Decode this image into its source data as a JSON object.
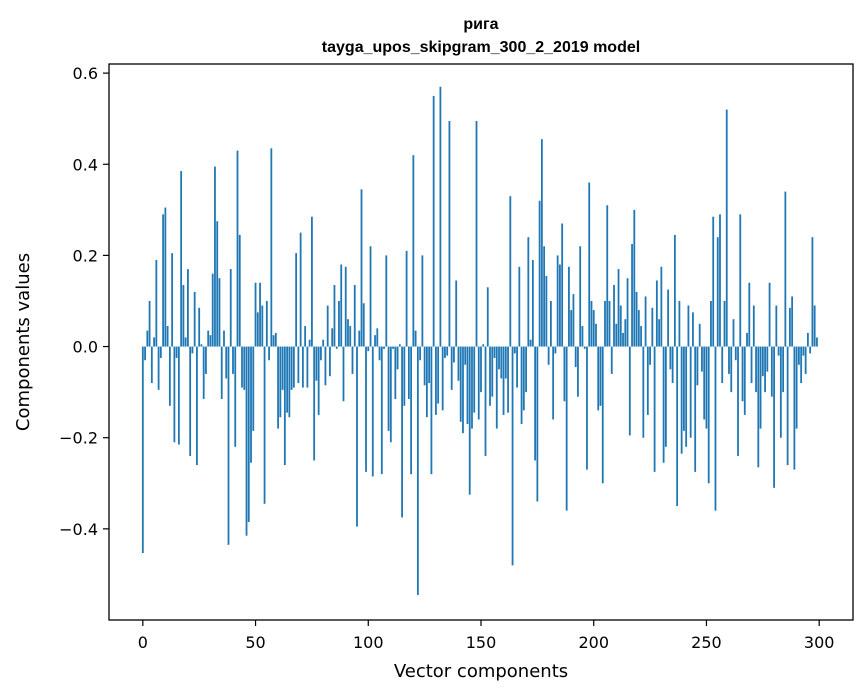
{
  "colors": {
    "bar": "#1f77b4",
    "axes": "#000000",
    "background": "#ffffff"
  },
  "chart_data": {
    "type": "bar",
    "title": "рига",
    "subtitle": "tayga_upos_skipgram_300_2_2019 model",
    "xlabel": "Vector components",
    "ylabel": "Components values",
    "xlim": [
      -15,
      315
    ],
    "ylim": [
      -0.6,
      0.62
    ],
    "xticks": [
      0,
      50,
      100,
      150,
      200,
      250,
      300
    ],
    "xtick_labels": [
      "0",
      "50",
      "100",
      "150",
      "200",
      "250",
      "300"
    ],
    "yticks": [
      -0.4,
      -0.2,
      0.0,
      0.2,
      0.4,
      0.6
    ],
    "ytick_labels": [
      "−0.4",
      "−0.2",
      "0.0",
      "0.2",
      "0.4",
      "0.6"
    ],
    "grid": false,
    "legend": "none",
    "x": [
      0,
      1,
      2,
      3,
      4,
      5,
      6,
      7,
      8,
      9,
      10,
      11,
      12,
      13,
      14,
      15,
      16,
      17,
      18,
      19,
      20,
      21,
      22,
      23,
      24,
      25,
      26,
      27,
      28,
      29,
      30,
      31,
      32,
      33,
      34,
      35,
      36,
      37,
      38,
      39,
      40,
      41,
      42,
      43,
      44,
      45,
      46,
      47,
      48,
      49,
      50,
      51,
      52,
      53,
      54,
      55,
      56,
      57,
      58,
      59,
      60,
      61,
      62,
      63,
      64,
      65,
      66,
      67,
      68,
      69,
      70,
      71,
      72,
      73,
      74,
      75,
      76,
      77,
      78,
      79,
      80,
      81,
      82,
      83,
      84,
      85,
      86,
      87,
      88,
      89,
      90,
      91,
      92,
      93,
      94,
      95,
      96,
      97,
      98,
      99,
      100,
      101,
      102,
      103,
      104,
      105,
      106,
      107,
      108,
      109,
      110,
      111,
      112,
      113,
      114,
      115,
      116,
      117,
      118,
      119,
      120,
      121,
      122,
      123,
      124,
      125,
      126,
      127,
      128,
      129,
      130,
      131,
      132,
      133,
      134,
      135,
      136,
      137,
      138,
      139,
      140,
      141,
      142,
      143,
      144,
      145,
      146,
      147,
      148,
      149,
      150,
      151,
      152,
      153,
      154,
      155,
      156,
      157,
      158,
      159,
      160,
      161,
      162,
      163,
      164,
      165,
      166,
      167,
      168,
      169,
      170,
      171,
      172,
      173,
      174,
      175,
      176,
      177,
      178,
      179,
      180,
      181,
      182,
      183,
      184,
      185,
      186,
      187,
      188,
      189,
      190,
      191,
      192,
      193,
      194,
      195,
      196,
      197,
      198,
      199,
      200,
      201,
      202,
      203,
      204,
      205,
      206,
      207,
      208,
      209,
      210,
      211,
      212,
      213,
      214,
      215,
      216,
      217,
      218,
      219,
      220,
      221,
      222,
      223,
      224,
      225,
      226,
      227,
      228,
      229,
      230,
      231,
      232,
      233,
      234,
      235,
      236,
      237,
      238,
      239,
      240,
      241,
      242,
      243,
      244,
      245,
      246,
      247,
      248,
      249,
      250,
      251,
      252,
      253,
      254,
      255,
      256,
      257,
      258,
      259,
      260,
      261,
      262,
      263,
      264,
      265,
      266,
      267,
      268,
      269,
      270,
      271,
      272,
      273,
      274,
      275,
      276,
      277,
      278,
      279,
      280,
      281,
      282,
      283,
      284,
      285,
      286,
      287,
      288,
      289,
      290,
      291,
      292,
      293,
      294,
      295,
      296,
      297,
      298,
      299
    ],
    "values": [
      -0.453,
      -0.03,
      0.035,
      0.1,
      -0.08,
      0.02,
      0.19,
      -0.095,
      -0.025,
      0.29,
      0.305,
      0.045,
      -0.13,
      0.205,
      -0.21,
      -0.025,
      -0.215,
      0.385,
      0.135,
      0.02,
      0.17,
      -0.24,
      -0.015,
      0.12,
      -0.26,
      0.085,
      0.005,
      -0.115,
      -0.06,
      0.035,
      0.025,
      0.16,
      0.395,
      0.275,
      0.15,
      -0.115,
      0.035,
      -0.07,
      -0.435,
      0.17,
      -0.06,
      -0.22,
      0.43,
      0.245,
      -0.09,
      -0.095,
      -0.415,
      -0.385,
      -0.255,
      -0.185,
      0.14,
      0.075,
      0.14,
      0.09,
      -0.345,
      0.1,
      -0.03,
      0.435,
      0.025,
      0.03,
      -0.18,
      -0.155,
      -0.095,
      -0.26,
      -0.145,
      -0.155,
      -0.095,
      -0.09,
      0.205,
      -0.08,
      0.25,
      -0.09,
      0.045,
      -0.09,
      0.015,
      0.285,
      -0.25,
      -0.075,
      -0.15,
      -0.03,
      0.015,
      -0.085,
      0.09,
      -0.065,
      0.04,
      0.135,
      -0.005,
      0.1,
      0.18,
      -0.12,
      0.175,
      0.06,
      0.045,
      -0.06,
      0.135,
      -0.395,
      0.035,
      0.345,
      0.095,
      -0.275,
      -0.01,
      0.22,
      -0.285,
      0.025,
      0.04,
      -0.03,
      -0.28,
      -0.005,
      0.2,
      -0.185,
      -0.21,
      -0.005,
      -0.115,
      -0.05,
      0.005,
      -0.375,
      -0.13,
      0.21,
      -0.115,
      -0.28,
      0.42,
      0.035,
      -0.545,
      -0.03,
      0.2,
      -0.085,
      -0.155,
      -0.08,
      -0.28,
      0.55,
      -0.15,
      -0.125,
      0.57,
      -0.14,
      -0.025,
      -0.02,
      0.495,
      -0.095,
      -0.035,
      0.145,
      -0.075,
      -0.165,
      -0.19,
      -0.04,
      -0.17,
      -0.325,
      -0.18,
      -0.145,
      0.495,
      -0.16,
      -0.1,
      0.005,
      -0.24,
      0.13,
      -0.13,
      -0.11,
      -0.025,
      -0.18,
      -0.05,
      -0.07,
      -0.15,
      -0.07,
      -0.145,
      0.33,
      -0.48,
      -0.015,
      -0.09,
      0.175,
      -0.17,
      -0.14,
      -0.1,
      0.24,
      0.015,
      0.19,
      -0.25,
      -0.34,
      0.32,
      0.455,
      0.22,
      0.155,
      -0.04,
      0.1,
      -0.16,
      -0.015,
      0.2,
      0.18,
      0.27,
      -0.12,
      -0.36,
      0.175,
      0.08,
      0.115,
      -0.045,
      -0.11,
      0.22,
      0.045,
      -0.005,
      -0.27,
      0.36,
      0.1,
      0.08,
      0.05,
      -0.14,
      -0.13,
      -0.3,
      0.1,
      0.31,
      0.1,
      -0.06,
      0.135,
      0.05,
      0.17,
      0.09,
      0.03,
      0.06,
      0.15,
      -0.195,
      0.225,
      0.3,
      0.12,
      0.08,
      0.045,
      -0.2,
      0.11,
      -0.15,
      -0.04,
      0.085,
      -0.275,
      0.145,
      0.06,
      0.175,
      -0.255,
      -0.22,
      0.125,
      -0.05,
      -0.08,
      0.245,
      -0.35,
      0.1,
      -0.235,
      -0.185,
      -0.22,
      0.09,
      -0.2,
      0.075,
      -0.275,
      -0.085,
      0.05,
      -0.055,
      -0.16,
      -0.18,
      -0.3,
      0.1,
      0.285,
      -0.36,
      0.24,
      0.29,
      -0.08,
      0.1,
      0.52,
      -0.06,
      -0.1,
      0.06,
      -0.03,
      -0.24,
      0.29,
      -0.12,
      -0.15,
      0.03,
      0.14,
      -0.08,
      0.09,
      -0.1,
      -0.265,
      -0.18,
      -0.065,
      -0.1,
      -0.055,
      0.14,
      -0.11,
      -0.31,
      0.09,
      -0.02,
      -0.2,
      -0.1,
      0.34,
      -0.26,
      0.085,
      0.11,
      -0.27,
      -0.18,
      -0.04,
      -0.08,
      -0.02,
      -0.06,
      0.03,
      -0.015,
      0.24,
      0.09,
      0.02
    ]
  }
}
